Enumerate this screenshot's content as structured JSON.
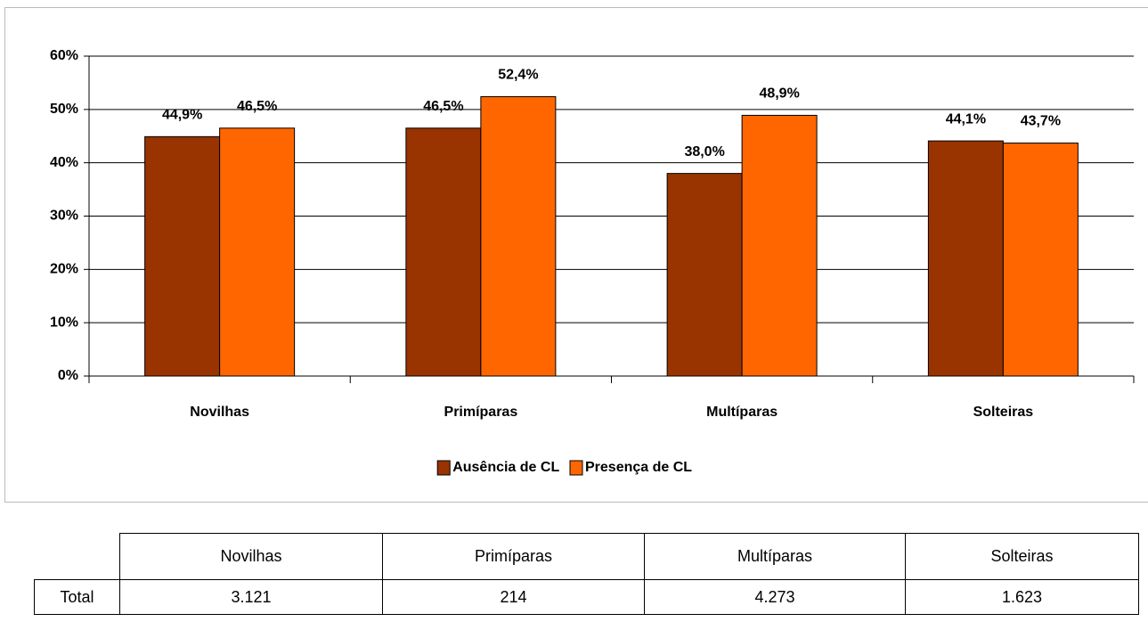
{
  "chart_data": {
    "type": "bar",
    "categories": [
      "Novilhas",
      "Primíparas",
      "Multíparas",
      "Solteiras"
    ],
    "series": [
      {
        "name": "Ausência de CL",
        "color": "#993300",
        "values": [
          44.9,
          46.5,
          38.0,
          44.1
        ],
        "value_labels": [
          "44,9%",
          "46,5%",
          "38,0%",
          "44,1%"
        ]
      },
      {
        "name": "Presença de CL",
        "color": "#ff6600",
        "values": [
          46.5,
          52.4,
          48.9,
          43.7
        ],
        "value_labels": [
          "46,5%",
          "52,4%",
          "48,9%",
          "43,7%"
        ]
      }
    ],
    "ylim": [
      0,
      60
    ],
    "yticks": [
      {
        "value": 0,
        "label": "0%"
      },
      {
        "value": 10,
        "label": "10%"
      },
      {
        "value": 20,
        "label": "20%"
      },
      {
        "value": 30,
        "label": "30%"
      },
      {
        "value": 40,
        "label": "40%"
      },
      {
        "value": 50,
        "label": "50%"
      },
      {
        "value": 60,
        "label": "60%"
      }
    ],
    "grid": true,
    "legend": "bottom"
  },
  "table": {
    "columns": [
      "Novilhas",
      "Primíparas",
      "Multíparas",
      "Solteiras"
    ],
    "rows": [
      [
        "Total",
        "3.121",
        "214",
        "4.273",
        "1.623"
      ]
    ]
  }
}
